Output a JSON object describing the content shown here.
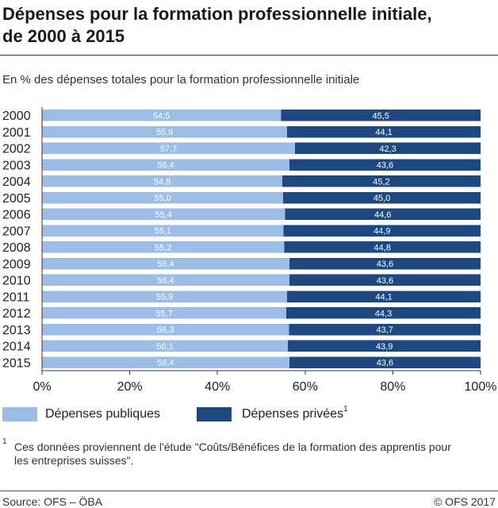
{
  "chart_data": {
    "type": "bar",
    "orientation": "horizontal",
    "stacked": "percent",
    "title": [
      "Dépenses pour la formation professionnelle initiale,",
      "de 2000 à 2015"
    ],
    "subtitle": "En % des dépenses totales pour la formation professionnelle initiale",
    "categories": [
      "2000",
      "2001",
      "2002",
      "2003",
      "2004",
      "2005",
      "2006",
      "2007",
      "2008",
      "2009",
      "2010",
      "2011",
      "2012",
      "2013",
      "2014",
      "2015"
    ],
    "series": [
      {
        "name": "Dépenses publiques",
        "color": "#9cbde6",
        "values": [
          54.5,
          55.9,
          57.7,
          56.4,
          54.8,
          55.0,
          55.4,
          55.1,
          55.2,
          56.4,
          56.4,
          55.9,
          55.7,
          56.3,
          56.1,
          56.4
        ]
      },
      {
        "name": "Dépenses privées",
        "note": "1",
        "color": "#1d4980",
        "values": [
          45.5,
          44.1,
          42.3,
          43.6,
          45.2,
          45.0,
          44.6,
          44.9,
          44.8,
          43.6,
          43.6,
          44.1,
          44.3,
          43.7,
          43.9,
          43.6
        ]
      }
    ],
    "xlim": [
      0,
      100
    ],
    "xticks": [
      0,
      20,
      40,
      60,
      80,
      100
    ],
    "xtick_labels": [
      "0%",
      "20%",
      "40%",
      "60%",
      "80%",
      "100%"
    ],
    "data_labels": true,
    "data_label_color": "#ffffff",
    "grid": false,
    "legend_position": "bottom-left"
  },
  "footnote": {
    "marker": "1",
    "lines": [
      "Ces données proviennent de l'étude \"Coûts/Bénéfices de la formation des apprentis pour",
      "les entreprises suisses\"."
    ]
  },
  "source": "Source: OFS – ÖBA",
  "copyright": "© OFS 2017"
}
